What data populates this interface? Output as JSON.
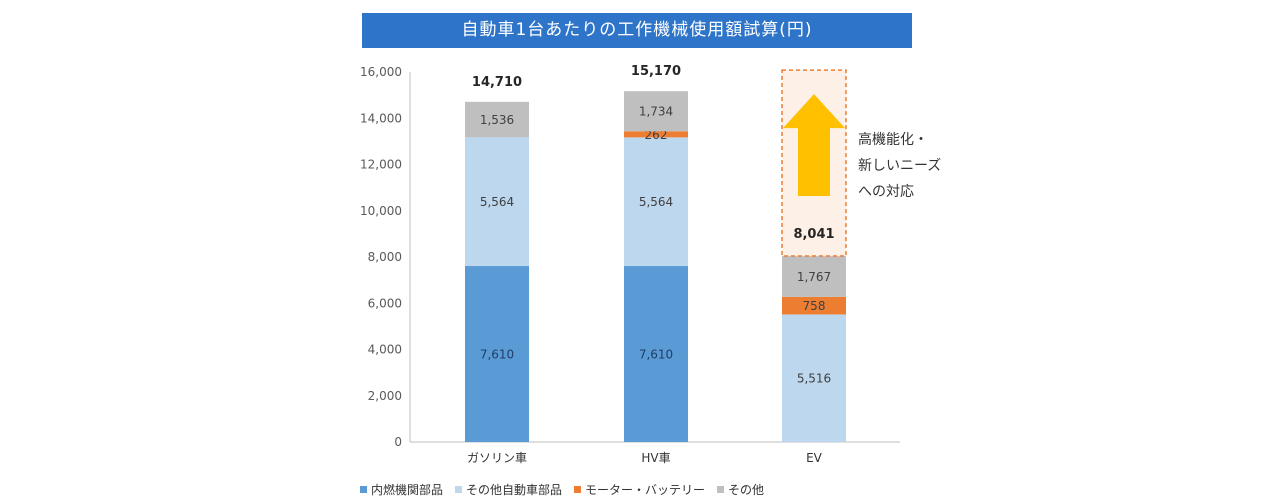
{
  "chart_data": {
    "type": "bar",
    "stacked": true,
    "title": "自動車1台あたりの工作機械使用額試算(円)",
    "categories": [
      "ガソリン車",
      "HV車",
      "EV"
    ],
    "ylim": [
      0,
      16000
    ],
    "yticks": [
      "0",
      "2,000",
      "4,000",
      "6,000",
      "8,000",
      "10,000",
      "12,000",
      "14,000",
      "16,000"
    ],
    "grid": false,
    "legend_position": "bottom",
    "series": [
      {
        "name": "内燃機関部品",
        "color": "#5b9bd5",
        "values": [
          7610,
          7610,
          0
        ],
        "labels": [
          "7,610",
          "7,610",
          ""
        ]
      },
      {
        "name": "その他自動車部品",
        "color": "#bdd7ee",
        "values": [
          5564,
          5564,
          5516
        ],
        "labels": [
          "5,564",
          "5,564",
          "5,516"
        ]
      },
      {
        "name": "モーター・バッテリー",
        "color": "#ed7d31",
        "values": [
          0,
          262,
          758
        ],
        "labels": [
          "",
          "262",
          "758"
        ]
      },
      {
        "name": "その他",
        "color": "#bfbfbf",
        "values": [
          1536,
          1734,
          1767
        ],
        "labels": [
          "1,536",
          "1,734",
          "1,767"
        ]
      }
    ],
    "totals": [
      "14,710",
      "15,170",
      ""
    ],
    "annotation": {
      "category": "EV",
      "value": 8041,
      "label": "8,041",
      "text_lines": [
        "高機能化・",
        "新しいニーズ",
        "への対応"
      ],
      "box_color": "#ed7d31",
      "arrow_color": "#ffc000"
    }
  }
}
